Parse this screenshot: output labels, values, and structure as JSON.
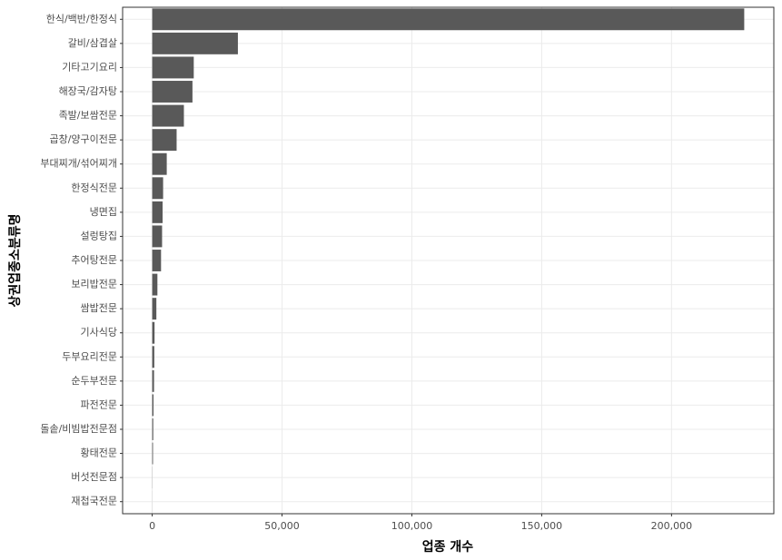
{
  "chart_data": {
    "type": "barh",
    "x_label": "업종 개수",
    "y_label": "상권업종소분류명",
    "categories": [
      "한식/백반/한정식",
      "갈비/삼겹살",
      "기타고기요리",
      "해장국/감자탕",
      "족발/보쌈전문",
      "곱창/양구이전문",
      "부대찌개/섞어찌개",
      "한정식전문",
      "냉면집",
      "설렁탕집",
      "추어탕전문",
      "보리밥전문",
      "쌈밥전문",
      "기사식당",
      "두부요리전문",
      "순두부전문",
      "파전전문",
      "돌솥/비빔밥전문점",
      "황태전문",
      "버섯전문점",
      "재첩국전문"
    ],
    "values": [
      228000,
      33000,
      16000,
      15500,
      12200,
      9400,
      5600,
      4200,
      4000,
      3800,
      3400,
      2000,
      1600,
      900,
      800,
      700,
      500,
      400,
      300,
      50,
      20
    ],
    "color": "#595959",
    "xlim": [
      -11400,
      239400
    ],
    "xticks": [
      0,
      {
        "value": 50000,
        "label": "50,000"
      },
      {
        "value": 100000,
        "label": "100,000"
      },
      {
        "value": 150000,
        "label": "150,000"
      },
      {
        "value": 200000,
        "label": "200,000"
      }
    ],
    "grid": true
  }
}
